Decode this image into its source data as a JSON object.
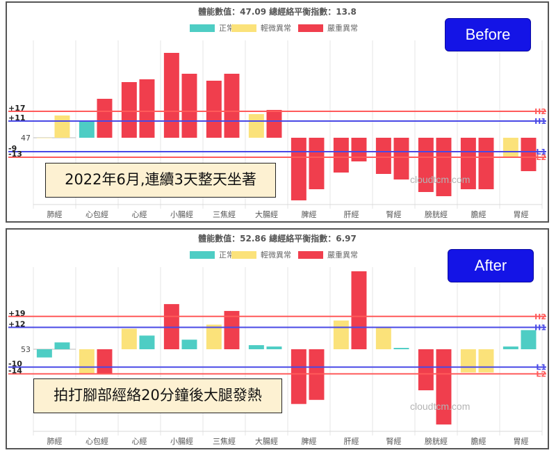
{
  "chart_data": [
    {
      "type": "bar",
      "title": "體能數值：47.09 總經絡平衡指數：13.8",
      "badge": "Before",
      "caption": "2022年6月,連續3天整天坐著",
      "watermark": "cloudtcm.com",
      "categories": [
        "肺經",
        "心包經",
        "心經",
        "小腸經",
        "三焦經",
        "大腸經",
        "脾經",
        "肝經",
        "腎經",
        "膀胱經",
        "膽經",
        "胃經"
      ],
      "legend": [
        {
          "name": "正常",
          "color": "#4ecdc4"
        },
        {
          "name": "輕微異常",
          "color": "#fbe27a"
        },
        {
          "name": "嚴重異常",
          "color": "#f03e4d"
        }
      ],
      "baseline": 47,
      "baseline_label": "47",
      "ylim": [
        -48,
        70
      ],
      "bars": [
        [
          {
            "value": 0,
            "status": 1
          },
          {
            "value": 16,
            "status": 1
          }
        ],
        [
          {
            "value": 12,
            "status": 0
          },
          {
            "value": 28,
            "status": 2
          }
        ],
        [
          {
            "value": 40,
            "status": 2
          },
          {
            "value": 42,
            "status": 2
          }
        ],
        [
          {
            "value": 61,
            "status": 2
          },
          {
            "value": 46,
            "status": 2
          }
        ],
        [
          {
            "value": 41,
            "status": 2
          },
          {
            "value": 46,
            "status": 2
          }
        ],
        [
          {
            "value": 17,
            "status": 1
          },
          {
            "value": 20,
            "status": 2
          }
        ],
        [
          {
            "value": -45,
            "status": 2
          },
          {
            "value": -37,
            "status": 2
          }
        ],
        [
          {
            "value": -25,
            "status": 2
          },
          {
            "value": -17,
            "status": 2
          }
        ],
        [
          {
            "value": -26,
            "status": 2
          },
          {
            "value": -30,
            "status": 2
          }
        ],
        [
          {
            "value": -39,
            "status": 2
          },
          {
            "value": -42,
            "status": 2
          }
        ],
        [
          {
            "value": -37,
            "status": 2
          },
          {
            "value": -37,
            "status": 2
          }
        ],
        [
          {
            "value": -14,
            "status": 1
          },
          {
            "value": -24,
            "status": 2
          }
        ]
      ],
      "ref_lines": [
        {
          "value": 19,
          "tick": "+17",
          "label": "H2",
          "color": "#ff5a5a"
        },
        {
          "value": 12,
          "tick": "+11",
          "label": "H1",
          "color": "#4848e6"
        },
        {
          "value": -10,
          "tick": "-9",
          "label": "L1",
          "color": "#4848e6"
        },
        {
          "value": -14,
          "tick": "-13",
          "label": "L2",
          "color": "#ff5a5a"
        }
      ]
    },
    {
      "type": "bar",
      "title": "體能數值：52.86 總經絡平衡指數：6.97",
      "badge": "After",
      "caption": "拍打腳部經絡20分鐘後大腿發熱",
      "watermark": "cloudtcm.com",
      "categories": [
        "肺經",
        "心包經",
        "心經",
        "小腸經",
        "三焦經",
        "大腸經",
        "脾經",
        "肝經",
        "腎經",
        "膀胱經",
        "膽經",
        "胃經"
      ],
      "legend": [
        {
          "name": "正常",
          "color": "#4ecdc4"
        },
        {
          "name": "輕微異常",
          "color": "#fbe27a"
        },
        {
          "name": "嚴重異常",
          "color": "#f03e4d"
        }
      ],
      "baseline": 53,
      "baseline_label": "53",
      "ylim": [
        -60,
        60
      ],
      "bars": [
        [
          {
            "value": -6,
            "status": 0
          },
          {
            "value": 5,
            "status": 0
          }
        ],
        [
          {
            "value": -18,
            "status": 1
          },
          {
            "value": -18,
            "status": 2
          }
        ],
        [
          {
            "value": 15,
            "status": 1
          },
          {
            "value": 10,
            "status": 0
          }
        ],
        [
          {
            "value": 33,
            "status": 2
          },
          {
            "value": 7,
            "status": 0
          }
        ],
        [
          {
            "value": 18,
            "status": 1
          },
          {
            "value": 28,
            "status": 2
          }
        ],
        [
          {
            "value": 3,
            "status": 0
          },
          {
            "value": 2,
            "status": 0
          }
        ],
        [
          {
            "value": -40,
            "status": 2
          },
          {
            "value": -37,
            "status": 2
          }
        ],
        [
          {
            "value": 21,
            "status": 1
          },
          {
            "value": 57,
            "status": 2
          }
        ],
        [
          {
            "value": 16,
            "status": 1
          },
          {
            "value": 1,
            "status": 0
          }
        ],
        [
          {
            "value": -30,
            "status": 2
          },
          {
            "value": -55,
            "status": 2
          }
        ],
        [
          {
            "value": -17,
            "status": 1
          },
          {
            "value": -17,
            "status": 1
          }
        ],
        [
          {
            "value": 2,
            "status": 0
          },
          {
            "value": 14,
            "status": 0
          }
        ]
      ],
      "ref_lines": [
        {
          "value": 24,
          "tick": "+19",
          "label": "H2",
          "color": "#ff5a5a"
        },
        {
          "value": 16,
          "tick": "+12",
          "label": "H1",
          "color": "#4848e6"
        },
        {
          "value": -13,
          "tick": "-10",
          "label": "L1",
          "color": "#4848e6"
        },
        {
          "value": -18,
          "tick": "-14",
          "label": "L2",
          "color": "#ff5a5a"
        }
      ]
    }
  ]
}
